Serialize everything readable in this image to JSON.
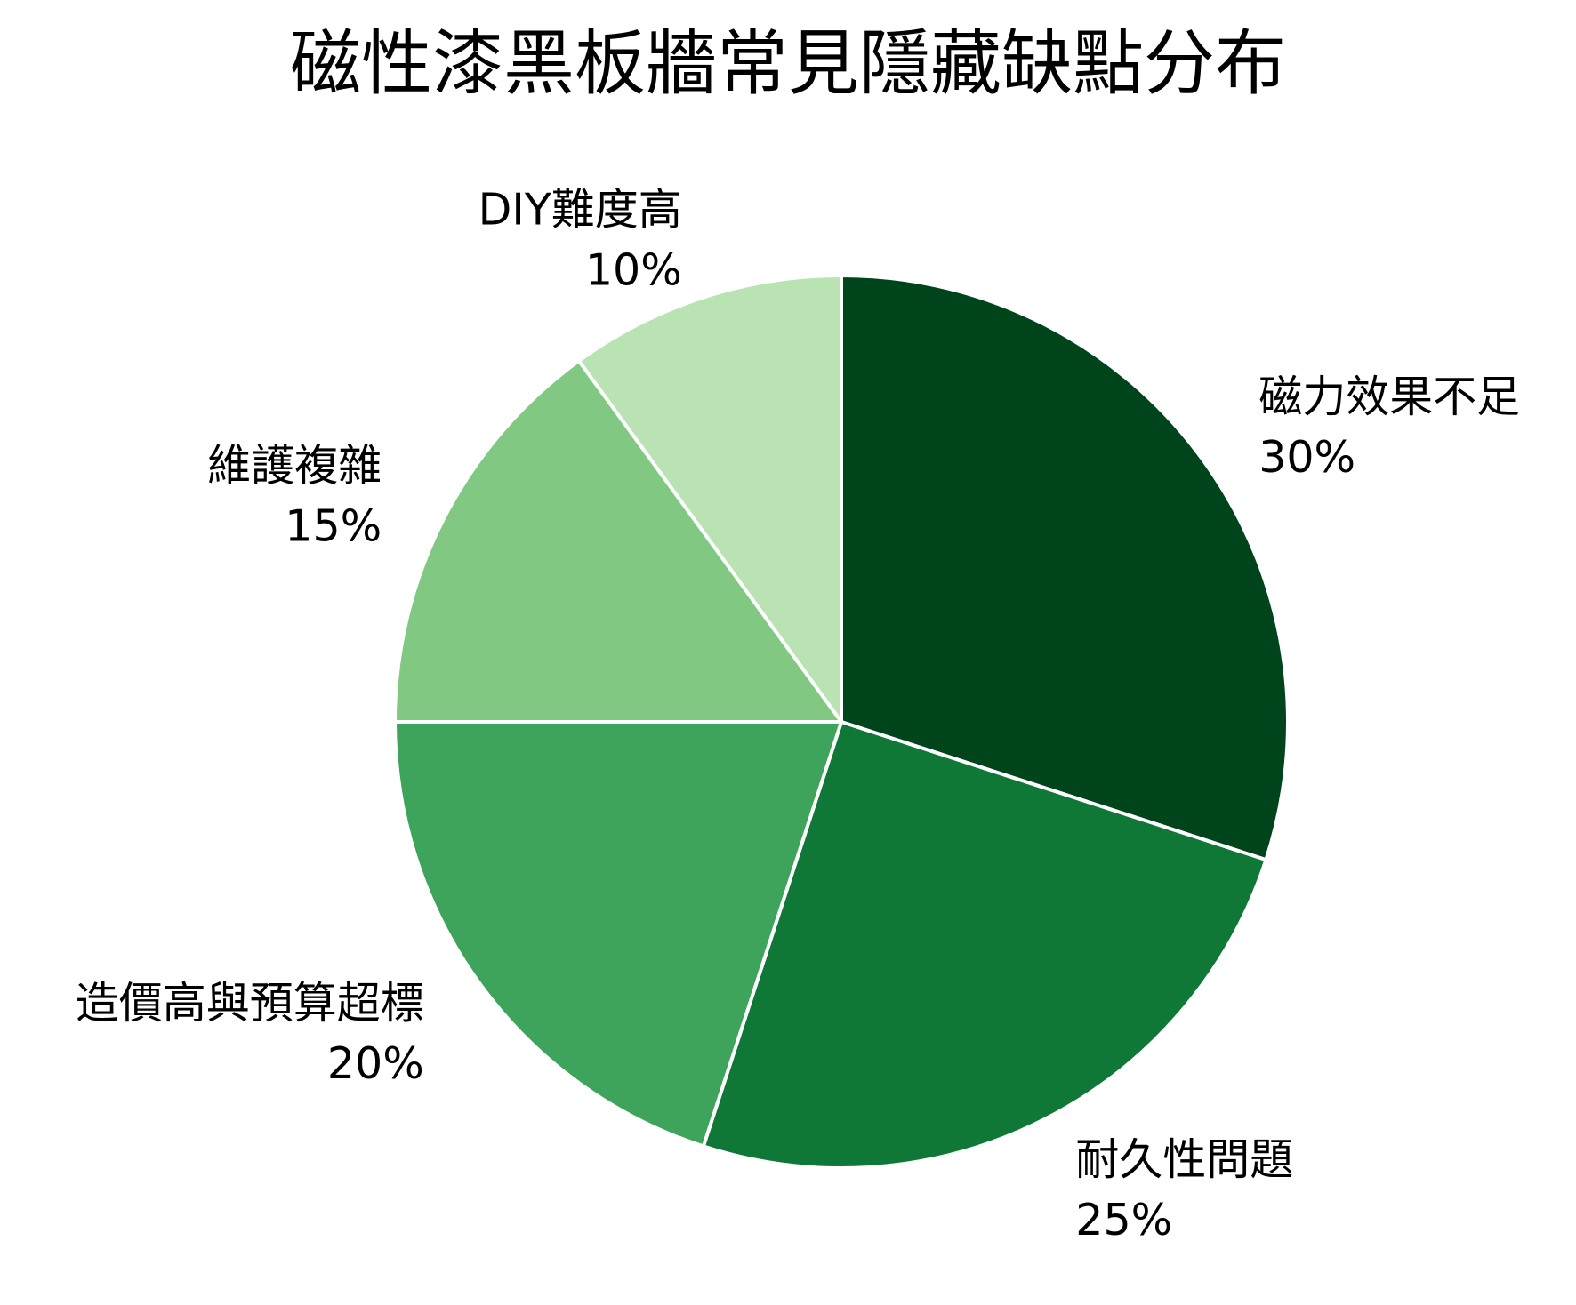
{
  "chart_data": {
    "type": "pie",
    "title": "磁性漆黑板牆常見隱藏缺點分布",
    "slices": [
      {
        "label": "磁力效果不足",
        "value": 30,
        "value_label": "30%",
        "color": "#00441b"
      },
      {
        "label": "耐久性問題",
        "value": 25,
        "value_label": "25%",
        "color": "#0f7837"
      },
      {
        "label": "造價高與預算超標",
        "value": 20,
        "value_label": "20%",
        "color": "#3ea35b"
      },
      {
        "label": "維護複雜",
        "value": 15,
        "value_label": "15%",
        "color": "#81c882"
      },
      {
        "label": "DIY難度高",
        "value": 10,
        "value_label": "10%",
        "color": "#b9e3b3"
      }
    ],
    "start_angle": "12 o'clock",
    "direction": "clockwise",
    "slice_border_color": "#ffffff",
    "legend": "none"
  }
}
